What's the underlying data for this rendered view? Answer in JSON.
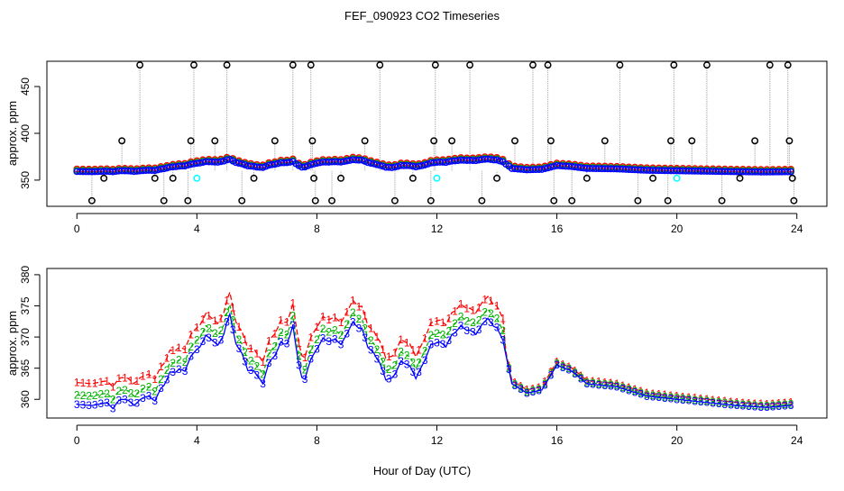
{
  "chart_data": [
    {
      "type": "scatter",
      "title": "FEF_090923  CO2 Timeseries",
      "xlabel": "",
      "ylabel": "approx. ppm",
      "xlim": [
        -1,
        25
      ],
      "ylim": [
        322,
        477
      ],
      "x_ticks": [
        0,
        4,
        8,
        12,
        16,
        20,
        24
      ],
      "y_ticks": [
        350,
        400,
        450
      ],
      "colors": {
        "series1": "#ff0000",
        "series2": "#00b000",
        "series3": "#0000ff",
        "outlier": "#000000",
        "cyan": "#00ffff",
        "connector": "#a0a0a0"
      },
      "outlier_line_base": 360,
      "outliers": [
        [
          0.5,
          328
        ],
        [
          0.9,
          352
        ],
        [
          1.5,
          392
        ],
        [
          2.1,
          473
        ],
        [
          2.6,
          352
        ],
        [
          2.9,
          328
        ],
        [
          3.2,
          352
        ],
        [
          3.7,
          328
        ],
        [
          3.8,
          392
        ],
        [
          3.9,
          473
        ],
        [
          4.6,
          392
        ],
        [
          5.0,
          473
        ],
        [
          5.5,
          328
        ],
        [
          5.9,
          352
        ],
        [
          6.6,
          392
        ],
        [
          7.2,
          473
        ],
        [
          7.8,
          473
        ],
        [
          7.85,
          392
        ],
        [
          7.9,
          352
        ],
        [
          7.95,
          328
        ],
        [
          8.5,
          328
        ],
        [
          8.8,
          352
        ],
        [
          9.6,
          392
        ],
        [
          10.1,
          473
        ],
        [
          10.6,
          328
        ],
        [
          11.2,
          352
        ],
        [
          11.8,
          328
        ],
        [
          11.9,
          392
        ],
        [
          11.95,
          473
        ],
        [
          12.5,
          392
        ],
        [
          13.1,
          473
        ],
        [
          13.5,
          328
        ],
        [
          14.0,
          352
        ],
        [
          14.6,
          392
        ],
        [
          15.2,
          473
        ],
        [
          15.7,
          473
        ],
        [
          15.8,
          392
        ],
        [
          15.9,
          328
        ],
        [
          16.5,
          328
        ],
        [
          17.0,
          352
        ],
        [
          17.6,
          392
        ],
        [
          18.1,
          473
        ],
        [
          18.7,
          328
        ],
        [
          19.2,
          352
        ],
        [
          19.7,
          328
        ],
        [
          19.8,
          392
        ],
        [
          19.9,
          473
        ],
        [
          20.5,
          392
        ],
        [
          21.0,
          473
        ],
        [
          21.5,
          328
        ],
        [
          22.1,
          352
        ],
        [
          22.6,
          392
        ],
        [
          23.1,
          473
        ],
        [
          23.7,
          473
        ],
        [
          23.75,
          392
        ],
        [
          23.85,
          352
        ],
        [
          23.9,
          328
        ]
      ],
      "cyan_points": [
        [
          4.0,
          352
        ],
        [
          12.0,
          352
        ],
        [
          20.0,
          352
        ]
      ]
    },
    {
      "type": "line",
      "title": "",
      "xlabel": "Hour of Day (UTC)",
      "ylabel": "approx. ppm",
      "xlim": [
        -1,
        25
      ],
      "ylim": [
        357,
        381
      ],
      "x_ticks": [
        0,
        4,
        8,
        12,
        16,
        20,
        24
      ],
      "y_ticks": [
        360,
        365,
        370,
        375,
        380
      ],
      "x_step": 0.1,
      "x_start": 0,
      "x_end": 23.8,
      "series": [
        {
          "name": "1",
          "label": "1",
          "color": "#ff0000",
          "dash": "6,3",
          "offset": 3.5
        },
        {
          "name": "2",
          "label": "2",
          "color": "#00b000",
          "dash": "4,3",
          "offset": 1.5
        },
        {
          "name": "3",
          "label": "3",
          "color": "#0000ff",
          "dash": "",
          "offset": 0
        }
      ],
      "trend_knots": [
        [
          0,
          359.2
        ],
        [
          0.5,
          359.0
        ],
        [
          1.0,
          359.5
        ],
        [
          1.5,
          360.0
        ],
        [
          2.0,
          359.8
        ],
        [
          2.5,
          360.8
        ],
        [
          3.0,
          362.5
        ],
        [
          3.5,
          365.5
        ],
        [
          4.0,
          368.0
        ],
        [
          4.5,
          369.5
        ],
        [
          5.0,
          370.5
        ],
        [
          5.5,
          367.5
        ],
        [
          6.0,
          364.0
        ],
        [
          6.5,
          366.5
        ],
        [
          7.0,
          368.5
        ],
        [
          7.5,
          364.5
        ],
        [
          8.0,
          368.0
        ],
        [
          8.5,
          369.5
        ],
        [
          9.0,
          370.5
        ],
        [
          9.5,
          371.5
        ],
        [
          10.0,
          366.5
        ],
        [
          10.5,
          363.5
        ],
        [
          11.0,
          365.5
        ],
        [
          11.5,
          365.5
        ],
        [
          12.0,
          369.0
        ],
        [
          12.5,
          370.5
        ],
        [
          13.0,
          371.0
        ],
        [
          13.5,
          372.0
        ],
        [
          14.0,
          371.5
        ],
        [
          14.2,
          369.5
        ],
        [
          14.5,
          362.5
        ],
        [
          15.0,
          361.0
        ],
        [
          15.5,
          361.5
        ],
        [
          16.0,
          365.5
        ],
        [
          16.5,
          364.5
        ],
        [
          17.0,
          362.5
        ],
        [
          18.0,
          362.0
        ],
        [
          19.0,
          360.5
        ],
        [
          20.0,
          360.0
        ],
        [
          21.0,
          359.5
        ],
        [
          22.0,
          359.0
        ],
        [
          23.0,
          358.7
        ],
        [
          23.8,
          359.0
        ]
      ],
      "wiggle": [
        [
          1.2,
          -1.2
        ],
        [
          1.9,
          -0.8
        ],
        [
          2.6,
          -1.4
        ],
        [
          3.1,
          1.3
        ],
        [
          3.6,
          -1.5
        ],
        [
          4.3,
          1.4
        ],
        [
          4.7,
          -1.2
        ],
        [
          5.1,
          3.8
        ],
        [
          5.7,
          -1.5
        ],
        [
          6.2,
          -2.5
        ],
        [
          6.8,
          1.5
        ],
        [
          7.2,
          5.0
        ],
        [
          7.6,
          -2.0
        ],
        [
          8.2,
          1.2
        ],
        [
          8.8,
          -1.3
        ],
        [
          9.2,
          1.5
        ],
        [
          9.7,
          -1.2
        ],
        [
          10.3,
          -1.6
        ],
        [
          10.8,
          1.4
        ],
        [
          11.3,
          -2.2
        ],
        [
          11.8,
          1.2
        ],
        [
          12.3,
          -1.5
        ],
        [
          12.8,
          1.0
        ],
        [
          13.3,
          -1.2
        ],
        [
          13.7,
          1.2
        ]
      ]
    }
  ]
}
